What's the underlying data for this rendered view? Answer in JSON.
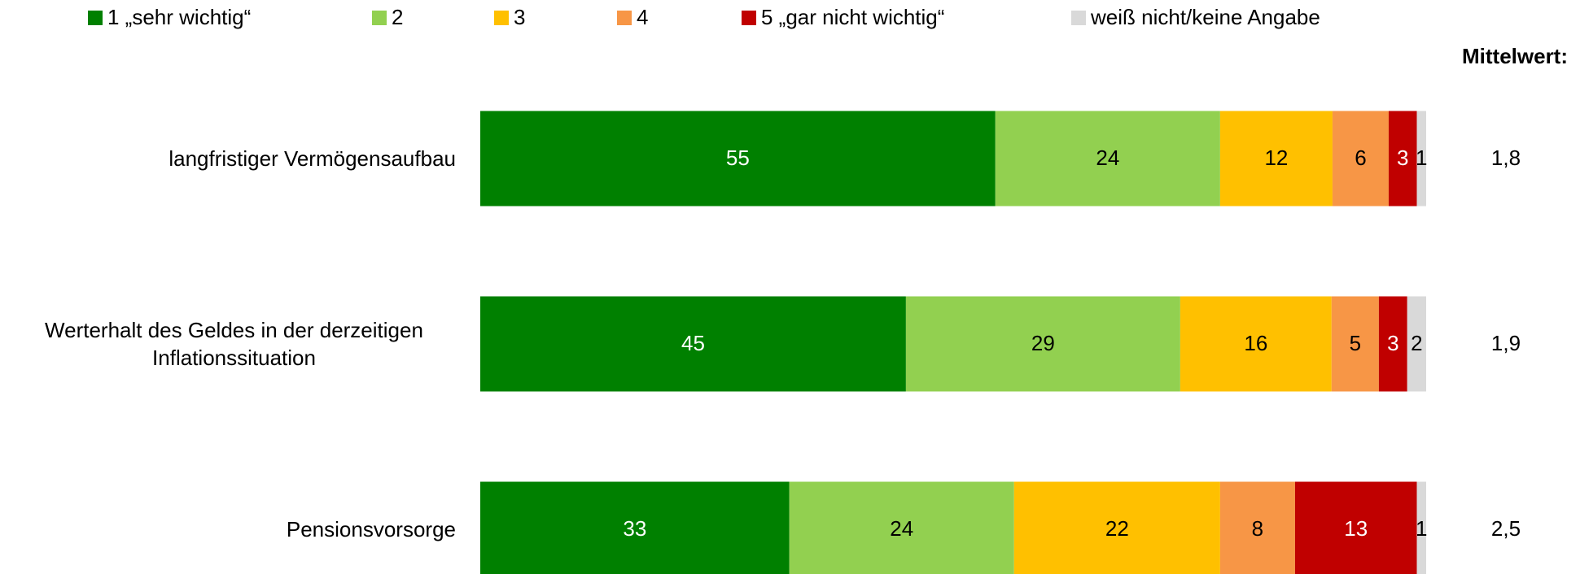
{
  "chart_data": {
    "type": "bar",
    "orientation": "horizontal",
    "stacking": "percent",
    "categories": [
      "langfristiger Vermögensaufbau",
      "Werterhalt des Geldes in der derzeitigen Inflationssituation",
      "Pensionsvorsorge"
    ],
    "series": [
      {
        "name": "1 „sehr wichtig“",
        "color": "#008000",
        "label_color": "#ffffff",
        "values": [
          55,
          45,
          33
        ]
      },
      {
        "name": "2",
        "color": "#92d050",
        "label_color": "#000000",
        "values": [
          24,
          29,
          24
        ]
      },
      {
        "name": "3",
        "color": "#ffc000",
        "label_color": "#000000",
        "values": [
          12,
          16,
          22
        ]
      },
      {
        "name": "4",
        "color": "#f79646",
        "label_color": "#000000",
        "values": [
          6,
          5,
          8
        ]
      },
      {
        "name": "5 „gar nicht wichtig“",
        "color": "#c00000",
        "label_color": "#ffffff",
        "values": [
          3,
          3,
          13
        ]
      },
      {
        "name": "weiß nicht/keine Angabe",
        "color": "#d9d9d9",
        "label_color": "#000000",
        "values": [
          1,
          2,
          1
        ]
      }
    ],
    "means_title": "Mittelwert:",
    "means": [
      1.8,
      1.9,
      2.5
    ],
    "means_labels": [
      "1,8",
      "1,9",
      "2,5"
    ],
    "legend": "top"
  }
}
